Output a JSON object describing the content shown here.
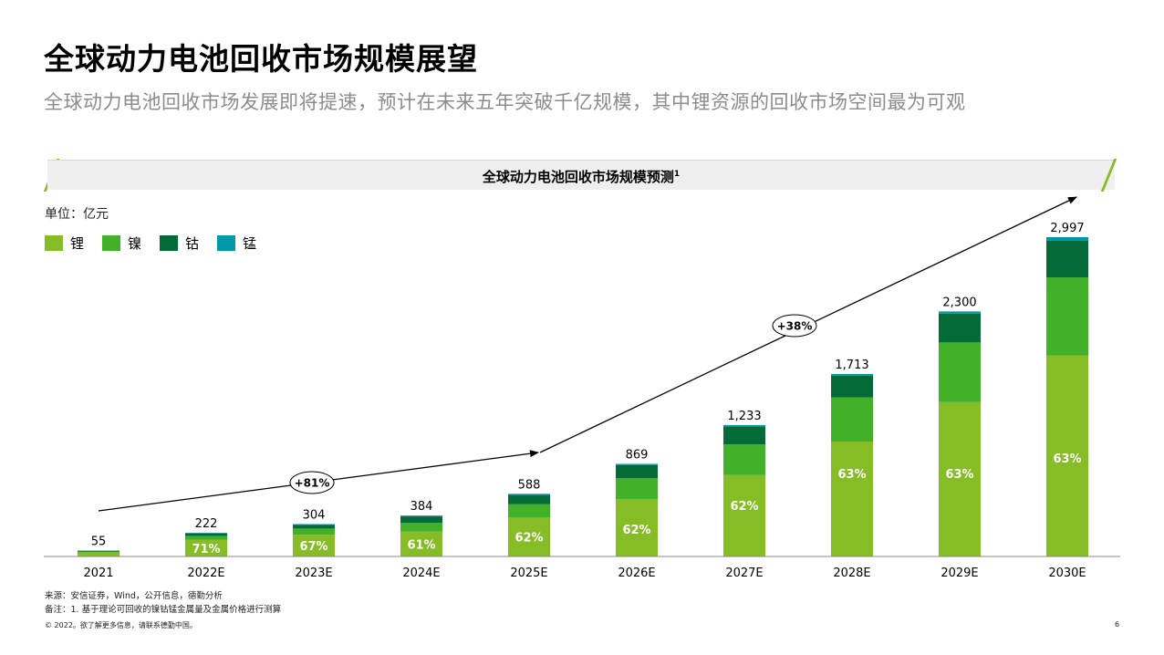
{
  "title": "全球动力电池回收市场规模展望",
  "subtitle": "全球动力电池回收市场发展即将提速，预计在未来五年突破千亿规模，其中锂资源的回收市场空间最为可观",
  "chart_header": "全球动力电池回收市场规模预测",
  "chart_header_sup": "1",
  "unit_label": "单位：亿元",
  "footer": {
    "source": "来源：安信证券，Wind，公开信息，德勤分析",
    "note": "备注：1. 基于理论可回收的镍钴锰金属量及金属价格进行测算",
    "copyright": "© 2022。欲了解更多信息，请联系德勤中国。",
    "page_number": "6"
  },
  "chart_data": {
    "type": "bar",
    "stacked": true,
    "title": "全球动力电池回收市场规模预测",
    "ylabel": "单位：亿元",
    "ylim": [
      0,
      3400
    ],
    "categories": [
      "2021",
      "2022E",
      "2023E",
      "2024E",
      "2025E",
      "2026E",
      "2027E",
      "2028E",
      "2029E",
      "2030E"
    ],
    "totals": [
      55,
      222,
      304,
      384,
      588,
      869,
      1233,
      1713,
      2300,
      2997
    ],
    "total_labels": [
      "55",
      "222",
      "304",
      "384",
      "588",
      "869",
      "1,233",
      "1,713",
      "2,300",
      "2,997"
    ],
    "lithium_share_labels": [
      "",
      "71%",
      "67%",
      "61%",
      "62%",
      "62%",
      "62%",
      "63%",
      "63%",
      "63%"
    ],
    "series": [
      {
        "name": "锂",
        "color": "#86bc25",
        "values": [
          38,
          158,
          204,
          234,
          365,
          539,
          764,
          1079,
          1449,
          1888
        ]
      },
      {
        "name": "镍",
        "color": "#43b02a",
        "values": [
          9,
          35,
          58,
          83,
          127,
          195,
          287,
          414,
          560,
          732
        ]
      },
      {
        "name": "钴",
        "color": "#046a38",
        "values": [
          7,
          24,
          36,
          59,
          85,
          124,
          168,
          203,
          270,
          343
        ]
      },
      {
        "name": "锰",
        "color": "#0097a9",
        "values": [
          1,
          5,
          6,
          8,
          11,
          11,
          14,
          17,
          21,
          34
        ]
      }
    ],
    "annotations": [
      {
        "label": "+81%",
        "from": "2021",
        "to": "2025E"
      },
      {
        "label": "+38%",
        "from": "2025E",
        "to": "2030E"
      }
    ],
    "legend_position": "top-left"
  }
}
